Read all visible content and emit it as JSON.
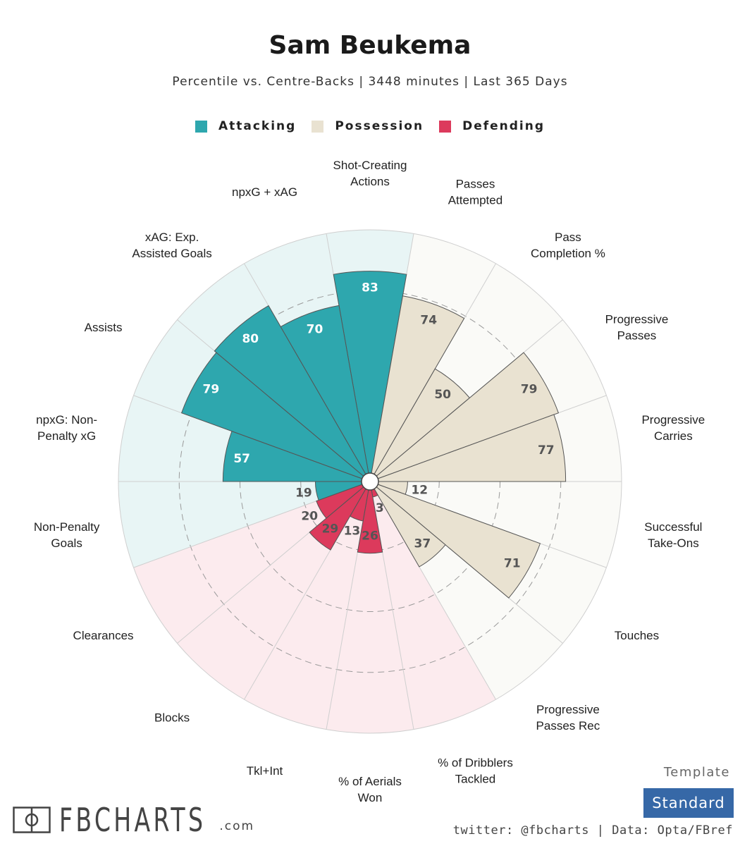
{
  "title": "Sam Beukema",
  "subtitle": "Percentile vs. Centre-Backs | 3448 minutes | Last 365 Days",
  "legend": [
    {
      "label": "Attacking",
      "color": "#2ea7ae"
    },
    {
      "label": "Possession",
      "color": "#e9e2d1"
    },
    {
      "label": "Defending",
      "color": "#dc3a5c"
    }
  ],
  "chart_data": {
    "type": "polar-bar",
    "scale_max": 100,
    "grid": true,
    "colors": {
      "Attacking": {
        "bar": "#2ea7ae",
        "bg": "#e8f5f5"
      },
      "Possession": {
        "bar": "#e9e2d1",
        "bg": "#fafaf7"
      },
      "Defending": {
        "bar": "#dc3a5c",
        "bg": "#fcebee"
      }
    },
    "categories": [
      {
        "label": [
          "Shot-Creating",
          "Actions"
        ],
        "value": 83,
        "group": "Attacking"
      },
      {
        "label": [
          "Passes",
          "Attempted"
        ],
        "value": 74,
        "group": "Possession"
      },
      {
        "label": [
          "Pass",
          "Completion %"
        ],
        "value": 50,
        "group": "Possession"
      },
      {
        "label": [
          "Progressive",
          "Passes"
        ],
        "value": 79,
        "group": "Possession"
      },
      {
        "label": [
          "Progressive",
          "Carries"
        ],
        "value": 77,
        "group": "Possession"
      },
      {
        "label": [
          "Successful",
          "Take-Ons"
        ],
        "value": 12,
        "group": "Possession"
      },
      {
        "label": [
          "Touches"
        ],
        "value": 71,
        "group": "Possession"
      },
      {
        "label": [
          "Progressive",
          "Passes Rec"
        ],
        "value": 37,
        "group": "Possession"
      },
      {
        "label": [
          "% of Dribblers",
          "Tackled"
        ],
        "value": 3,
        "group": "Defending"
      },
      {
        "label": [
          "% of Aerials",
          "Won"
        ],
        "value": 26,
        "group": "Defending"
      },
      {
        "label": [
          "Tkl+Int"
        ],
        "value": 13,
        "group": "Defending"
      },
      {
        "label": [
          "Blocks"
        ],
        "value": 29,
        "group": "Defending"
      },
      {
        "label": [
          "Clearances"
        ],
        "value": 20,
        "group": "Defending"
      },
      {
        "label": [
          "Non-Penalty",
          "Goals"
        ],
        "value": 19,
        "group": "Attacking"
      },
      {
        "label": [
          "npxG: Non-",
          "Penalty xG"
        ],
        "value": 57,
        "group": "Attacking"
      },
      {
        "label": [
          "Assists"
        ],
        "value": 79,
        "group": "Attacking"
      },
      {
        "label": [
          "xAG: Exp.",
          "Assisted Goals"
        ],
        "value": 80,
        "group": "Attacking"
      },
      {
        "label": [
          "npxG + xAG"
        ],
        "value": 70,
        "group": "Attacking"
      }
    ]
  },
  "template": {
    "label": "Template",
    "button": "Standard"
  },
  "credits": "twitter: @fbcharts | Data: Opta/FBref",
  "brand": {
    "name": "FBCHARTS",
    "tld": ".com"
  }
}
